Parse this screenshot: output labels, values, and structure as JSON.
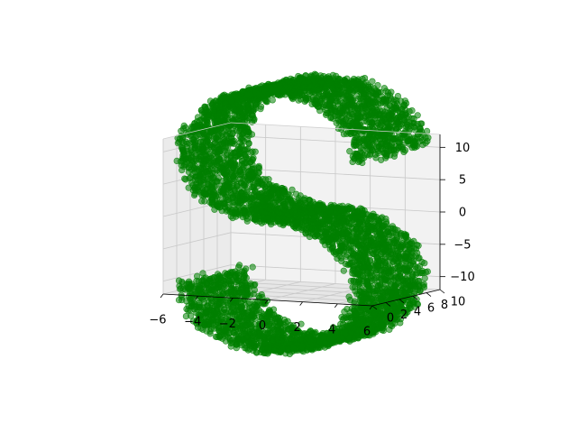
{
  "chart_data": {
    "type": "scatter",
    "projection": "3d",
    "title": "",
    "xlabel": "",
    "ylabel": "",
    "zlabel": "",
    "xlim": [
      -6,
      6
    ],
    "ylim": [
      0,
      10
    ],
    "zlim": [
      -12,
      12
    ],
    "x_ticks": [
      "−6",
      "−4",
      "−2",
      "0",
      "2",
      "4",
      "6"
    ],
    "y_ticks": [
      "0",
      "2",
      "4",
      "6",
      "8",
      "10"
    ],
    "z_ticks": [
      "−10",
      "−5",
      "0",
      "5",
      "10"
    ],
    "grid": true,
    "marker_color": "#008000",
    "marker_alpha": 0.55,
    "series": [
      {
        "shape": "S-curve",
        "point_count": 6000,
        "x_range": [
          -5,
          5
        ],
        "y_range": [
          0,
          10
        ],
        "z_range": [
          -10,
          10
        ]
      }
    ]
  }
}
